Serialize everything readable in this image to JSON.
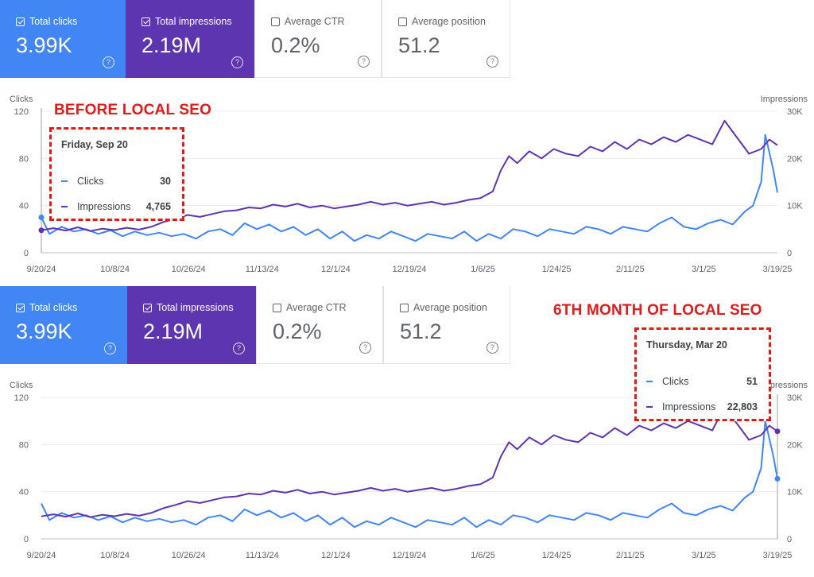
{
  "colors": {
    "clicks": "#4285f4",
    "impressions": "#5e35b1",
    "annotation": "#e01b1b"
  },
  "panels": [
    {
      "cards": [
        {
          "label": "Total clicks",
          "value": "3.99K",
          "checked": true
        },
        {
          "label": "Total impressions",
          "value": "2.19M",
          "checked": true
        },
        {
          "label": "Average CTR",
          "value": "0.2%",
          "checked": false
        },
        {
          "label": "Average position",
          "value": "51.2",
          "checked": false
        }
      ],
      "annotation": "BEFORE LOCAL SEO",
      "tooltip": {
        "date": "Friday, Sep 20",
        "clicks_label": "Clicks",
        "clicks_value": "30",
        "impressions_label": "Impressions",
        "impressions_value": "4,765"
      }
    },
    {
      "cards": [
        {
          "label": "Total clicks",
          "value": "3.99K",
          "checked": true
        },
        {
          "label": "Total impressions",
          "value": "2.19M",
          "checked": true
        },
        {
          "label": "Average CTR",
          "value": "0.2%",
          "checked": false
        },
        {
          "label": "Average position",
          "value": "51.2",
          "checked": false
        }
      ],
      "annotation": "6TH MONTH OF LOCAL SEO",
      "tooltip": {
        "date": "Thursday, Mar 20",
        "clicks_label": "Clicks",
        "clicks_value": "51",
        "impressions_label": "Impressions",
        "impressions_value": "22,803"
      }
    }
  ],
  "chart_data": [
    {
      "type": "line",
      "y_left_label": "Clicks",
      "y_right_label": "Impressions",
      "y_left_ticks": [
        "0",
        "40",
        "80",
        "120"
      ],
      "y_right_ticks": [
        "0",
        "10K",
        "20K",
        "30K"
      ],
      "y_left_range": [
        0,
        120
      ],
      "y_right_range": [
        0,
        30000
      ],
      "x_tick_labels": [
        "9/20/24",
        "10/8/24",
        "10/26/24",
        "11/13/24",
        "12/1/24",
        "12/19/24",
        "1/6/25",
        "1/24/25",
        "2/11/25",
        "3/1/25",
        "3/19/25"
      ],
      "x_range_days": [
        0,
        181
      ],
      "series": [
        {
          "name": "Clicks",
          "axis": "left",
          "points": [
            [
              0,
              30
            ],
            [
              2,
              16
            ],
            [
              5,
              22
            ],
            [
              8,
              18
            ],
            [
              11,
              20
            ],
            [
              14,
              16
            ],
            [
              17,
              19
            ],
            [
              20,
              14
            ],
            [
              23,
              18
            ],
            [
              26,
              15
            ],
            [
              29,
              17
            ],
            [
              32,
              14
            ],
            [
              35,
              16
            ],
            [
              38,
              12
            ],
            [
              41,
              18
            ],
            [
              44,
              20
            ],
            [
              47,
              15
            ],
            [
              50,
              25
            ],
            [
              53,
              20
            ],
            [
              56,
              24
            ],
            [
              59,
              18
            ],
            [
              62,
              22
            ],
            [
              65,
              15
            ],
            [
              68,
              20
            ],
            [
              71,
              12
            ],
            [
              74,
              18
            ],
            [
              77,
              10
            ],
            [
              80,
              15
            ],
            [
              83,
              12
            ],
            [
              86,
              18
            ],
            [
              89,
              14
            ],
            [
              92,
              10
            ],
            [
              95,
              16
            ],
            [
              98,
              14
            ],
            [
              101,
              12
            ],
            [
              104,
              18
            ],
            [
              107,
              10
            ],
            [
              110,
              16
            ],
            [
              113,
              12
            ],
            [
              116,
              20
            ],
            [
              119,
              18
            ],
            [
              122,
              14
            ],
            [
              125,
              20
            ],
            [
              128,
              18
            ],
            [
              131,
              16
            ],
            [
              134,
              22
            ],
            [
              137,
              20
            ],
            [
              140,
              16
            ],
            [
              143,
              22
            ],
            [
              146,
              20
            ],
            [
              149,
              18
            ],
            [
              152,
              25
            ],
            [
              155,
              30
            ],
            [
              158,
              22
            ],
            [
              161,
              20
            ],
            [
              164,
              25
            ],
            [
              167,
              28
            ],
            [
              170,
              24
            ],
            [
              173,
              35
            ],
            [
              175,
              40
            ],
            [
              177,
              60
            ],
            [
              178,
              100
            ],
            [
              180,
              70
            ],
            [
              181,
              51
            ]
          ]
        },
        {
          "name": "Impressions",
          "axis": "right",
          "points": [
            [
              0,
              4765
            ],
            [
              3,
              5200
            ],
            [
              6,
              4700
            ],
            [
              9,
              5400
            ],
            [
              12,
              4600
            ],
            [
              15,
              5100
            ],
            [
              18,
              4800
            ],
            [
              21,
              5300
            ],
            [
              24,
              4900
            ],
            [
              27,
              5500
            ],
            [
              30,
              6500
            ],
            [
              33,
              7200
            ],
            [
              36,
              8000
            ],
            [
              39,
              7600
            ],
            [
              42,
              8200
            ],
            [
              45,
              8800
            ],
            [
              48,
              9000
            ],
            [
              51,
              9600
            ],
            [
              54,
              9400
            ],
            [
              57,
              10200
            ],
            [
              60,
              9800
            ],
            [
              63,
              10400
            ],
            [
              66,
              9600
            ],
            [
              69,
              10000
            ],
            [
              72,
              9400
            ],
            [
              75,
              9800
            ],
            [
              78,
              10200
            ],
            [
              81,
              10800
            ],
            [
              84,
              10200
            ],
            [
              87,
              10600
            ],
            [
              90,
              10000
            ],
            [
              93,
              10400
            ],
            [
              96,
              10800
            ],
            [
              99,
              10200
            ],
            [
              102,
              10600
            ],
            [
              105,
              11200
            ],
            [
              108,
              11600
            ],
            [
              111,
              13000
            ],
            [
              113,
              17500
            ],
            [
              115,
              20500
            ],
            [
              117,
              19000
            ],
            [
              120,
              21500
            ],
            [
              123,
              20000
            ],
            [
              126,
              22000
            ],
            [
              129,
              21000
            ],
            [
              132,
              20500
            ],
            [
              135,
              22500
            ],
            [
              138,
              21500
            ],
            [
              141,
              23500
            ],
            [
              144,
              22000
            ],
            [
              147,
              24000
            ],
            [
              150,
              23000
            ],
            [
              153,
              24500
            ],
            [
              156,
              23500
            ],
            [
              159,
              25000
            ],
            [
              162,
              24000
            ],
            [
              165,
              23000
            ],
            [
              168,
              28000
            ],
            [
              171,
              24500
            ],
            [
              174,
              21000
            ],
            [
              177,
              22000
            ],
            [
              179,
              24000
            ],
            [
              181,
              22803
            ]
          ]
        }
      ]
    }
  ]
}
